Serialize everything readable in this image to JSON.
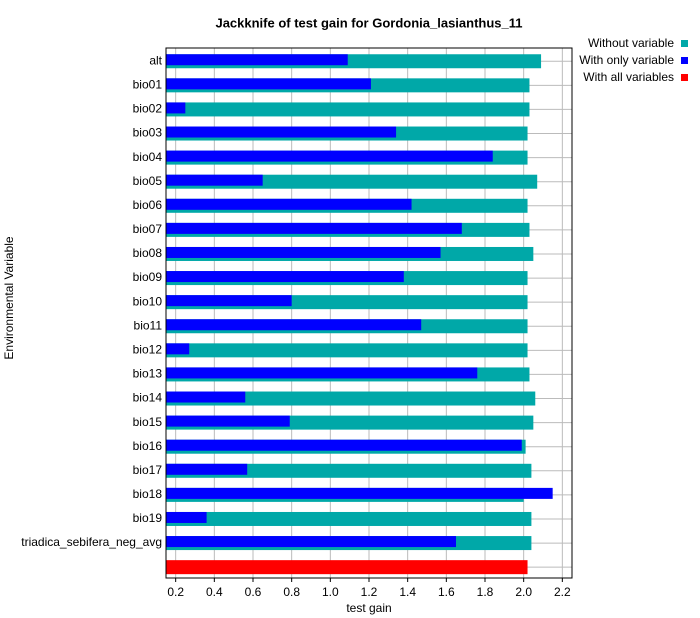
{
  "chart_data": {
    "type": "bar",
    "orientation": "horizontal",
    "title": "Jackknife of test gain for Gordonia_lasianthus_11",
    "x_label": "test gain",
    "y_label": "Environmental Variable",
    "categories": [
      "alt",
      "bio01",
      "bio02",
      "bio03",
      "bio04",
      "bio05",
      "bio06",
      "bio07",
      "bio08",
      "bio09",
      "bio10",
      "bio11",
      "bio12",
      "bio13",
      "bio14",
      "bio15",
      "bio16",
      "bio17",
      "bio18",
      "bio19",
      "triadica_sebifera_neg_avg",
      null
    ],
    "series": [
      {
        "name": "Without variable",
        "color": "#00a8a8",
        "values": [
          2.09,
          2.03,
          2.03,
          2.02,
          2.02,
          2.07,
          2.02,
          2.03,
          2.05,
          2.02,
          2.02,
          2.02,
          2.02,
          2.03,
          2.06,
          2.05,
          2.01,
          2.04,
          2.0,
          2.04,
          2.04,
          null
        ]
      },
      {
        "name": "With only variable",
        "color": "#0000ff",
        "values": [
          1.09,
          1.21,
          0.25,
          1.34,
          1.84,
          0.65,
          1.42,
          1.68,
          1.57,
          1.38,
          0.8,
          1.47,
          0.27,
          1.76,
          0.56,
          0.79,
          1.99,
          0.57,
          2.15,
          0.36,
          1.65,
          null
        ]
      },
      {
        "name": "With all variables",
        "color": "#ff0000",
        "values": [
          null,
          null,
          null,
          null,
          null,
          null,
          null,
          null,
          null,
          null,
          null,
          null,
          null,
          null,
          null,
          null,
          null,
          null,
          null,
          null,
          null,
          2.02
        ]
      }
    ],
    "xlim": [
      0.15,
      2.25
    ],
    "xticks": [
      0.2,
      0.4,
      0.6,
      0.8,
      {
        "value": 1,
        "label": "1.0"
      },
      1.2,
      1.4,
      1.6,
      1.8,
      {
        "value": 2,
        "label": "2.0"
      },
      2.2
    ],
    "grid": true,
    "legend": "top-right"
  }
}
